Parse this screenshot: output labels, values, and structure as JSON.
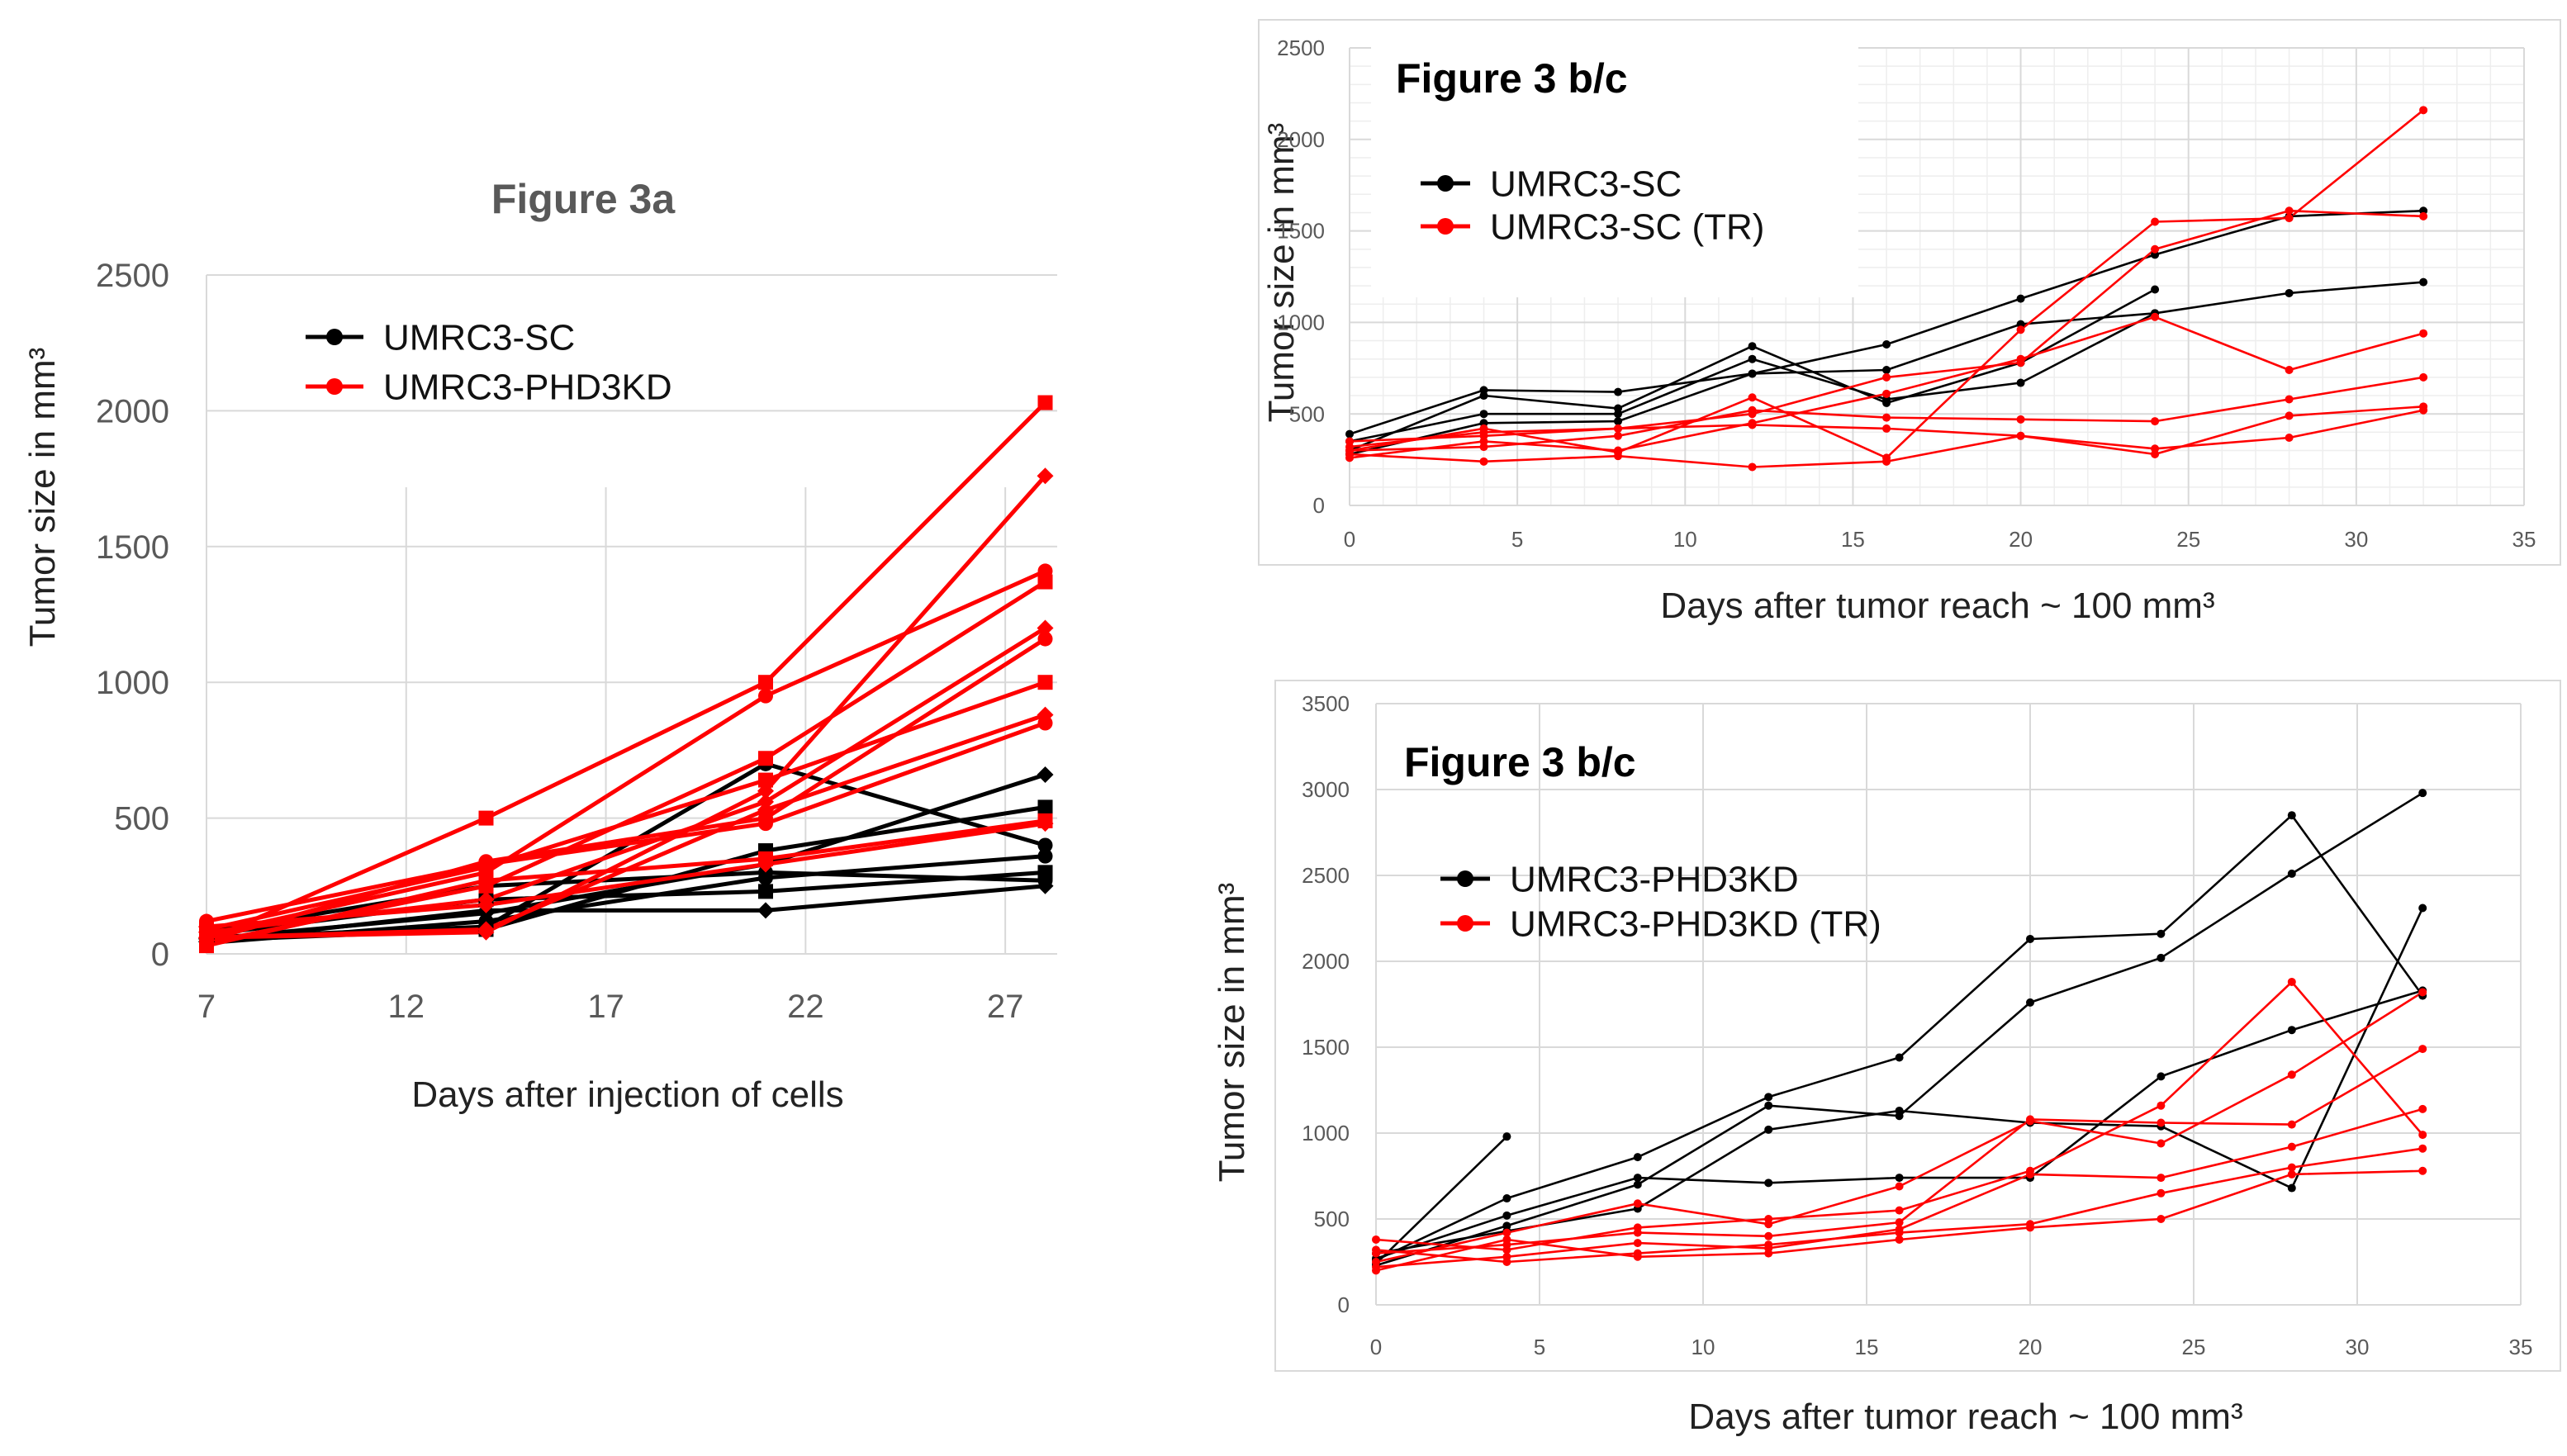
{
  "chart_data": [
    {
      "type": "line",
      "title": "Figure 3a",
      "xlabel": "Days after injection of cells",
      "ylabel": "Tumor size in mm³",
      "xlim": [
        7,
        28
      ],
      "ylim": [
        0,
        2500
      ],
      "xticks": [
        7,
        12,
        17,
        22,
        27
      ],
      "yticks": [
        0,
        500,
        1000,
        1500,
        2000,
        2500
      ],
      "legend": [
        {
          "label": "UMRC3-SC",
          "color": "#000000"
        },
        {
          "label": "UMRC3-PHD3KD",
          "color": "#ff0000"
        }
      ],
      "series": [
        {
          "name": "UMRC3-SC",
          "color": "#000000",
          "x": [
            7,
            14,
            21,
            28
          ],
          "y": [
            60,
            100,
            700,
            400
          ]
        },
        {
          "name": "UMRC3-SC",
          "color": "#000000",
          "x": [
            7,
            14,
            21,
            28
          ],
          "y": [
            50,
            90,
            380,
            540
          ]
        },
        {
          "name": "UMRC3-SC",
          "color": "#000000",
          "x": [
            7,
            14,
            21,
            28
          ],
          "y": [
            55,
            150,
            330,
            660
          ]
        },
        {
          "name": "UMRC3-SC",
          "color": "#000000",
          "x": [
            7,
            14,
            21,
            28
          ],
          "y": [
            40,
            120,
            280,
            360
          ]
        },
        {
          "name": "UMRC3-SC",
          "color": "#000000",
          "x": [
            7,
            14,
            21,
            28
          ],
          "y": [
            70,
            200,
            230,
            300
          ]
        },
        {
          "name": "UMRC3-SC",
          "color": "#000000",
          "x": [
            7,
            14,
            21,
            28
          ],
          "y": [
            45,
            160,
            160,
            250
          ]
        },
        {
          "name": "UMRC3-SC",
          "color": "#000000",
          "x": [
            7,
            14,
            21,
            28
          ],
          "y": [
            80,
            250,
            300,
            270
          ]
        },
        {
          "name": "UMRC3-PHD3KD",
          "color": "#ff0000",
          "x": [
            7,
            14,
            21,
            28
          ],
          "y": [
            50,
            500,
            1000,
            2030
          ]
        },
        {
          "name": "UMRC3-PHD3KD",
          "color": "#ff0000",
          "x": [
            7,
            14,
            21,
            28
          ],
          "y": [
            60,
            80,
            600,
            1760
          ]
        },
        {
          "name": "UMRC3-PHD3KD",
          "color": "#ff0000",
          "x": [
            7,
            14,
            21,
            28
          ],
          "y": [
            70,
            300,
            950,
            1410
          ]
        },
        {
          "name": "UMRC3-PHD3KD",
          "color": "#ff0000",
          "x": [
            7,
            14,
            21,
            28
          ],
          "y": [
            40,
            250,
            720,
            1370
          ]
        },
        {
          "name": "UMRC3-PHD3KD",
          "color": "#ff0000",
          "x": [
            7,
            14,
            21,
            28
          ],
          "y": [
            80,
            200,
            560,
            1200
          ]
        },
        {
          "name": "UMRC3-PHD3KD",
          "color": "#ff0000",
          "x": [
            7,
            14,
            21,
            28
          ],
          "y": [
            50,
            340,
            500,
            1160
          ]
        },
        {
          "name": "UMRC3-PHD3KD",
          "color": "#ff0000",
          "x": [
            7,
            14,
            21,
            28
          ],
          "y": [
            90,
            320,
            640,
            1000
          ]
        },
        {
          "name": "UMRC3-PHD3KD",
          "color": "#ff0000",
          "x": [
            7,
            14,
            21,
            28
          ],
          "y": [
            60,
            90,
            530,
            880
          ]
        },
        {
          "name": "UMRC3-PHD3KD",
          "color": "#ff0000",
          "x": [
            7,
            14,
            21,
            28
          ],
          "y": [
            120,
            330,
            480,
            850
          ]
        },
        {
          "name": "UMRC3-PHD3KD",
          "color": "#ff0000",
          "x": [
            7,
            14,
            21,
            28
          ],
          "y": [
            30,
            270,
            350,
            490
          ]
        },
        {
          "name": "UMRC3-PHD3KD",
          "color": "#ff0000",
          "x": [
            7,
            14,
            21,
            28
          ],
          "y": [
            100,
            180,
            330,
            480
          ]
        }
      ]
    },
    {
      "type": "line",
      "title": "Figure 3 b/c",
      "xlabel": "Days after tumor reach ~ 100 mm³",
      "ylabel": "Tumor size in mm³",
      "xlim": [
        0,
        35
      ],
      "ylim": [
        0,
        2500
      ],
      "xticks": [
        0,
        5,
        10,
        15,
        20,
        25,
        30,
        35
      ],
      "yticks": [
        0,
        500,
        1000,
        1500,
        2000,
        2500
      ],
      "legend": [
        {
          "label": "UMRC3-SC",
          "color": "#000000"
        },
        {
          "label": "UMRC3-SC (TR)",
          "color": "#ff0000"
        }
      ],
      "series": [
        {
          "name": "UMRC3-SC",
          "color": "#000000",
          "x": [
            0,
            4,
            8,
            12,
            16,
            20,
            24,
            28,
            32
          ],
          "y": [
            390,
            630,
            620,
            720,
            880,
            1130,
            1370,
            1580,
            1610
          ]
        },
        {
          "name": "UMRC3-SC",
          "color": "#000000",
          "x": [
            0,
            4,
            8,
            12,
            16,
            20,
            24,
            28,
            32
          ],
          "y": [
            280,
            450,
            460,
            720,
            740,
            990,
            1050,
            1160,
            1220
          ]
        },
        {
          "name": "UMRC3-SC",
          "color": "#000000",
          "x": [
            0,
            4,
            8,
            12,
            16,
            20,
            24
          ],
          "y": [
            300,
            600,
            530,
            870,
            560,
            780,
            1180
          ]
        },
        {
          "name": "UMRC3-SC",
          "color": "#000000",
          "x": [
            0,
            4,
            8,
            12,
            16,
            20,
            24
          ],
          "y": [
            350,
            500,
            500,
            800,
            580,
            670,
            1050
          ]
        },
        {
          "name": "UMRC3-SC (TR)",
          "color": "#ff0000",
          "x": [
            0,
            4,
            8,
            12,
            16,
            20,
            24,
            28,
            32
          ],
          "y": [
            300,
            420,
            290,
            590,
            260,
            960,
            1550,
            1570,
            2160
          ]
        },
        {
          "name": "UMRC3-SC (TR)",
          "color": "#ff0000",
          "x": [
            0,
            4,
            8,
            12,
            16,
            20,
            24,
            28,
            32
          ],
          "y": [
            320,
            400,
            420,
            500,
            700,
            780,
            1400,
            1610,
            1580
          ]
        },
        {
          "name": "UMRC3-SC (TR)",
          "color": "#ff0000",
          "x": [
            0,
            4,
            8,
            12,
            16,
            20,
            24,
            28,
            32
          ],
          "y": [
            260,
            350,
            300,
            450,
            610,
            800,
            1030,
            740,
            940
          ]
        },
        {
          "name": "UMRC3-SC (TR)",
          "color": "#ff0000",
          "x": [
            0,
            4,
            8,
            12,
            16,
            20,
            24,
            28,
            32
          ],
          "y": [
            300,
            320,
            380,
            520,
            480,
            470,
            460,
            580,
            700
          ]
        },
        {
          "name": "UMRC3-SC (TR)",
          "color": "#ff0000",
          "x": [
            0,
            4,
            8,
            12,
            16,
            20,
            24,
            28,
            32
          ],
          "y": [
            350,
            380,
            420,
            440,
            420,
            380,
            280,
            490,
            540
          ]
        },
        {
          "name": "UMRC3-SC (TR)",
          "color": "#ff0000",
          "x": [
            0,
            4,
            8,
            12,
            16,
            20,
            24,
            28,
            32
          ],
          "y": [
            280,
            240,
            270,
            210,
            240,
            380,
            310,
            370,
            520
          ]
        }
      ]
    },
    {
      "type": "line",
      "title": "Figure 3 b/c",
      "xlabel": "Days after tumor reach ~ 100 mm³",
      "ylabel": "Tumor size in mm³",
      "xlim": [
        0,
        35
      ],
      "ylim": [
        0,
        3500
      ],
      "xticks": [
        0,
        5,
        10,
        15,
        20,
        25,
        30,
        35
      ],
      "yticks": [
        0,
        500,
        1000,
        1500,
        2000,
        2500,
        3000,
        3500
      ],
      "legend": [
        {
          "label": "UMRC3-PHD3KD",
          "color": "#000000"
        },
        {
          "label": "UMRC3-PHD3KD (TR)",
          "color": "#ff0000"
        }
      ],
      "series": [
        {
          "name": "UMRC3-PHD3KD",
          "color": "#000000",
          "x": [
            0,
            4,
            8,
            12,
            16,
            20,
            24,
            28,
            32
          ],
          "y": [
            260,
            620,
            860,
            1210,
            1440,
            2130,
            2160,
            2850,
            1800
          ]
        },
        {
          "name": "UMRC3-PHD3KD",
          "color": "#000000",
          "x": [
            0,
            4,
            8,
            12,
            16,
            20,
            24,
            28,
            32
          ],
          "y": [
            230,
            460,
            700,
            1160,
            1100,
            1760,
            2020,
            2510,
            2980
          ]
        },
        {
          "name": "UMRC3-PHD3KD",
          "color": "#000000",
          "x": [
            0,
            4
          ],
          "y": [
            240,
            980
          ]
        },
        {
          "name": "UMRC3-PHD3KD",
          "color": "#000000",
          "x": [
            0,
            4,
            8,
            12,
            16,
            20,
            24,
            28,
            32
          ],
          "y": [
            300,
            430,
            560,
            1020,
            1130,
            1060,
            1040,
            680,
            2310
          ]
        },
        {
          "name": "UMRC3-PHD3KD",
          "color": "#000000",
          "x": [
            0,
            4,
            8,
            12,
            16,
            20,
            24,
            28,
            32
          ],
          "y": [
            270,
            520,
            740,
            710,
            740,
            740,
            1330,
            1600,
            1830
          ]
        },
        {
          "name": "UMRC3-PHD3KD (TR)",
          "color": "#ff0000",
          "x": [
            0,
            4,
            8,
            12,
            16,
            20,
            24,
            28,
            32
          ],
          "y": [
            380,
            320,
            450,
            500,
            550,
            780,
            1160,
            1880,
            990
          ]
        },
        {
          "name": "UMRC3-PHD3KD (TR)",
          "color": "#ff0000",
          "x": [
            0,
            4,
            8,
            12,
            16,
            20,
            24,
            28,
            32
          ],
          "y": [
            250,
            420,
            590,
            470,
            690,
            1070,
            940,
            1340,
            1820
          ]
        },
        {
          "name": "UMRC3-PHD3KD (TR)",
          "color": "#ff0000",
          "x": [
            0,
            4,
            8,
            12,
            16,
            20,
            24,
            28,
            32
          ],
          "y": [
            300,
            350,
            420,
            400,
            480,
            1080,
            1060,
            1050,
            1490
          ]
        },
        {
          "name": "UMRC3-PHD3KD (TR)",
          "color": "#ff0000",
          "x": [
            0,
            4,
            8,
            12,
            16,
            20,
            24,
            28,
            32
          ],
          "y": [
            220,
            280,
            360,
            330,
            440,
            760,
            740,
            920,
            1140
          ]
        },
        {
          "name": "UMRC3-PHD3KD (TR)",
          "color": "#ff0000",
          "x": [
            0,
            4,
            8,
            12,
            16,
            20,
            24,
            28,
            32
          ],
          "y": [
            320,
            250,
            300,
            350,
            420,
            470,
            650,
            800,
            910
          ]
        },
        {
          "name": "UMRC3-PHD3KD (TR)",
          "color": "#ff0000",
          "x": [
            0,
            4,
            8,
            12,
            16,
            20,
            24,
            28,
            32
          ],
          "y": [
            200,
            380,
            280,
            300,
            380,
            450,
            500,
            760,
            780
          ]
        }
      ]
    }
  ]
}
